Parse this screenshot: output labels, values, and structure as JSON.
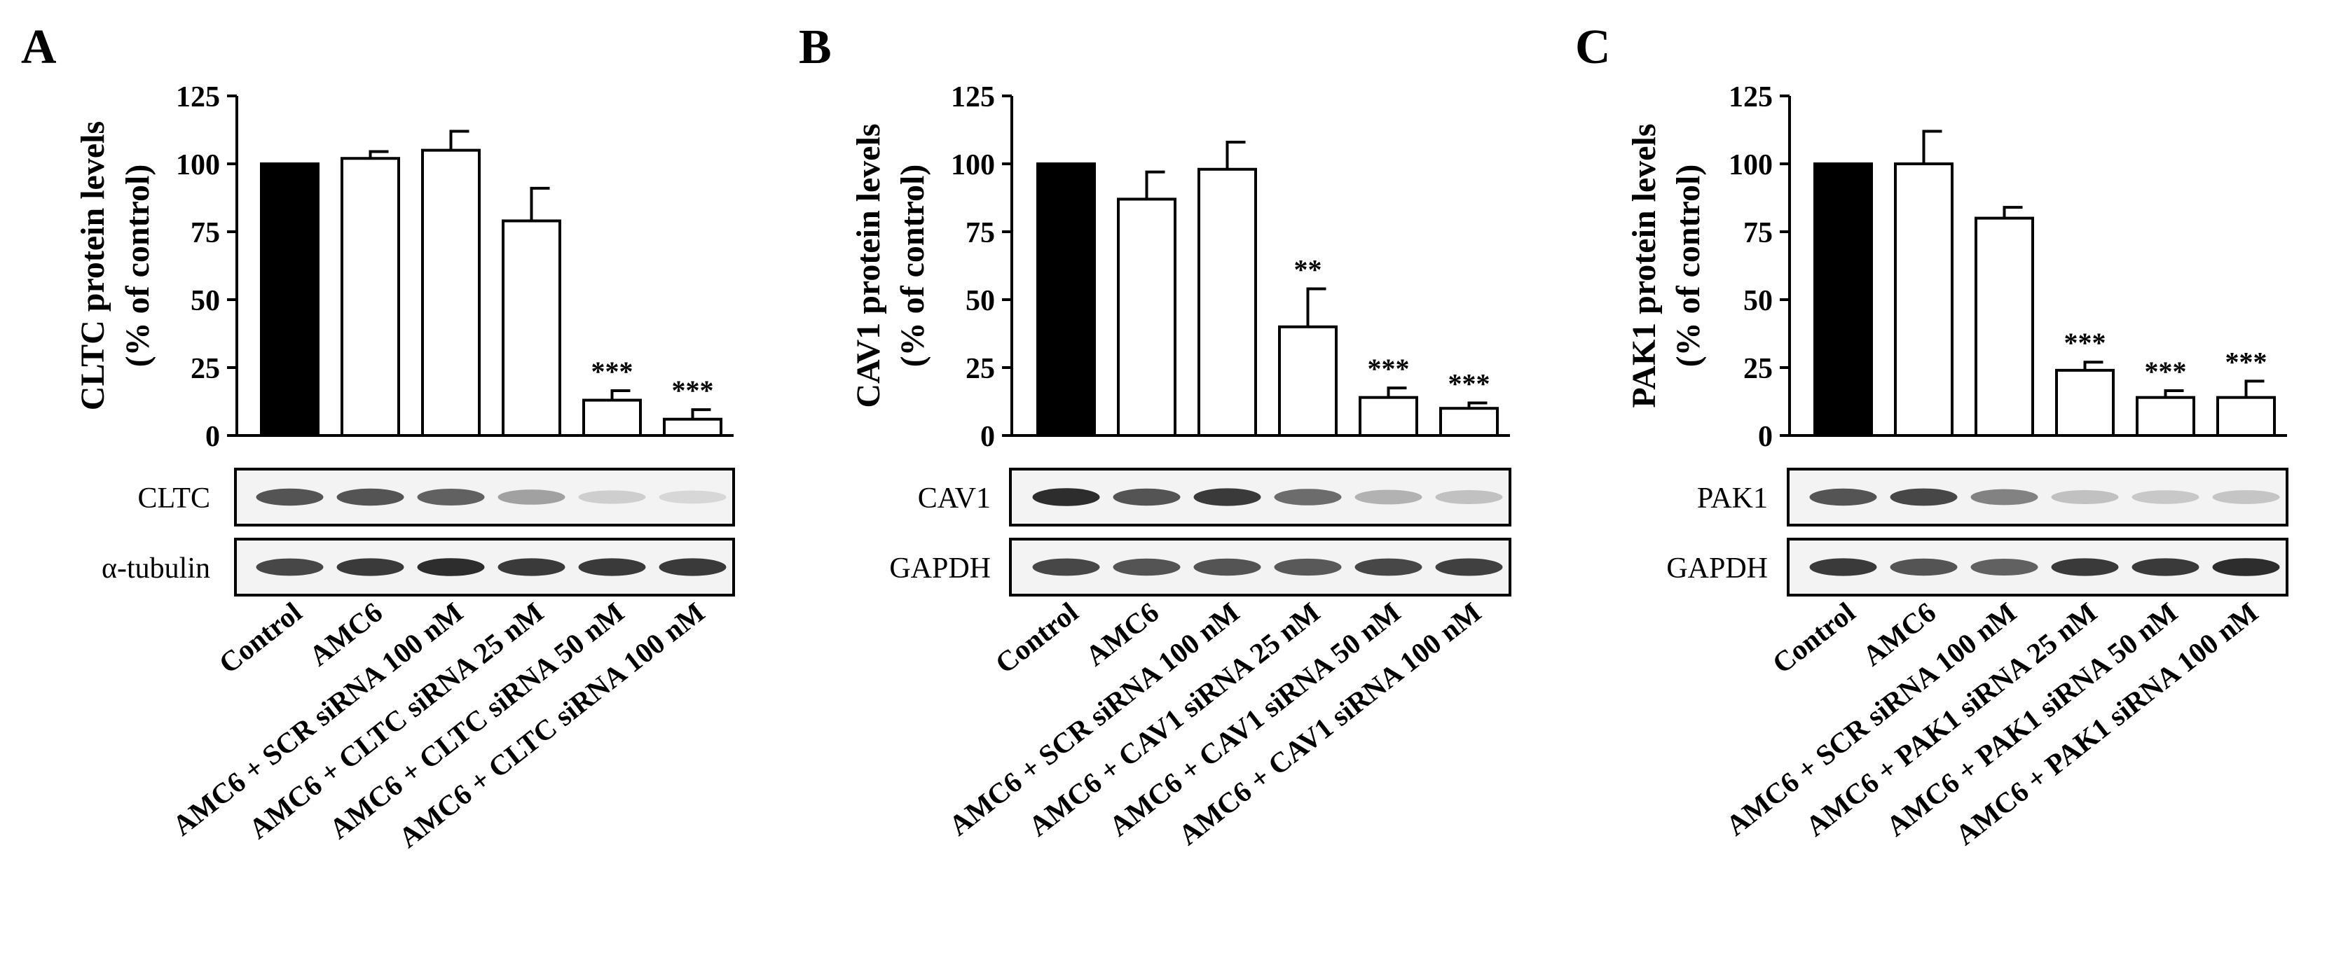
{
  "chart_data": [
    {
      "type": "bar",
      "panel_label": "A",
      "ylabel_line1": "CLTC protein levels",
      "ylabel_line2": "(% of control)",
      "ylim": [
        0,
        125
      ],
      "yticks": [
        "0",
        "25",
        "50",
        "75",
        "100",
        "125"
      ],
      "categories": [
        "Control",
        "AMC6",
        "AMC6 + SCR siRNA 100 nM",
        "AMC6 + CLTC siRNA 25 nM",
        "AMC6 + CLTC siRNA 50 nM",
        "AMC6 + CLTC siRNA 100 nM"
      ],
      "values": [
        100,
        102,
        105,
        79,
        13,
        6
      ],
      "errors": [
        0,
        2.5,
        7,
        12,
        3.5,
        3.5
      ],
      "significance": [
        "",
        "",
        "",
        "",
        "***",
        "***"
      ],
      "bar_fills": [
        "#000000",
        "#ffffff",
        "#ffffff",
        "#ffffff",
        "#ffffff",
        "#ffffff"
      ],
      "blots": [
        {
          "label": "CLTC",
          "intensities": [
            0.8,
            0.8,
            0.75,
            0.45,
            0.15,
            0.08
          ]
        },
        {
          "label": "α-tubulin",
          "intensities": [
            0.85,
            0.9,
            0.95,
            0.9,
            0.9,
            0.9
          ]
        }
      ]
    },
    {
      "type": "bar",
      "panel_label": "B",
      "ylabel_line1": "CAV1 protein levels",
      "ylabel_line2": "(% of control)",
      "ylim": [
        0,
        125
      ],
      "yticks": [
        "0",
        "25",
        "50",
        "75",
        "100",
        "125"
      ],
      "categories": [
        "Control",
        "AMC6",
        "AMC6 + SCR siRNA 100 nM",
        "AMC6 + CAV1 siRNA 25 nM",
        "AMC6 + CAV1 siRNA 50 nM",
        "AMC6 + CAV1 siRNA 100 nM"
      ],
      "values": [
        100,
        87,
        98,
        40,
        14,
        10
      ],
      "errors": [
        0,
        10,
        10,
        14,
        3.5,
        2
      ],
      "significance": [
        "",
        "",
        "",
        "**",
        "***",
        "***"
      ],
      "bar_fills": [
        "#000000",
        "#ffffff",
        "#ffffff",
        "#ffffff",
        "#ffffff",
        "#ffffff"
      ],
      "blots": [
        {
          "label": "CAV1",
          "intensities": [
            0.95,
            0.8,
            0.9,
            0.7,
            0.35,
            0.25
          ]
        },
        {
          "label": "GAPDH",
          "intensities": [
            0.85,
            0.8,
            0.8,
            0.78,
            0.85,
            0.88
          ]
        }
      ]
    },
    {
      "type": "bar",
      "panel_label": "C",
      "ylabel_line1": "PAK1 protein levels",
      "ylabel_line2": "(% of control)",
      "ylim": [
        0,
        125
      ],
      "yticks": [
        "0",
        "25",
        "50",
        "75",
        "100",
        "125"
      ],
      "categories": [
        "Control",
        "AMC6",
        "AMC6 + SCR siRNA 100 nM",
        "AMC6 + PAK1 siRNA 25 nM",
        "AMC6 + PAK1 siRNA 50 nM",
        "AMC6 + PAK1 siRNA 100 nM"
      ],
      "values": [
        100,
        100,
        80,
        24,
        14,
        14
      ],
      "errors": [
        0,
        12,
        4,
        3,
        2.5,
        6
      ],
      "significance": [
        "",
        "",
        "",
        "***",
        "***",
        "***"
      ],
      "bar_fills": [
        "#000000",
        "#ffffff",
        "#ffffff",
        "#ffffff",
        "#ffffff",
        "#ffffff"
      ],
      "blots": [
        {
          "label": "PAK1",
          "intensities": [
            0.8,
            0.85,
            0.6,
            0.25,
            0.2,
            0.22
          ]
        },
        {
          "label": "GAPDH",
          "intensities": [
            0.9,
            0.8,
            0.75,
            0.9,
            0.9,
            0.95
          ]
        }
      ]
    }
  ]
}
